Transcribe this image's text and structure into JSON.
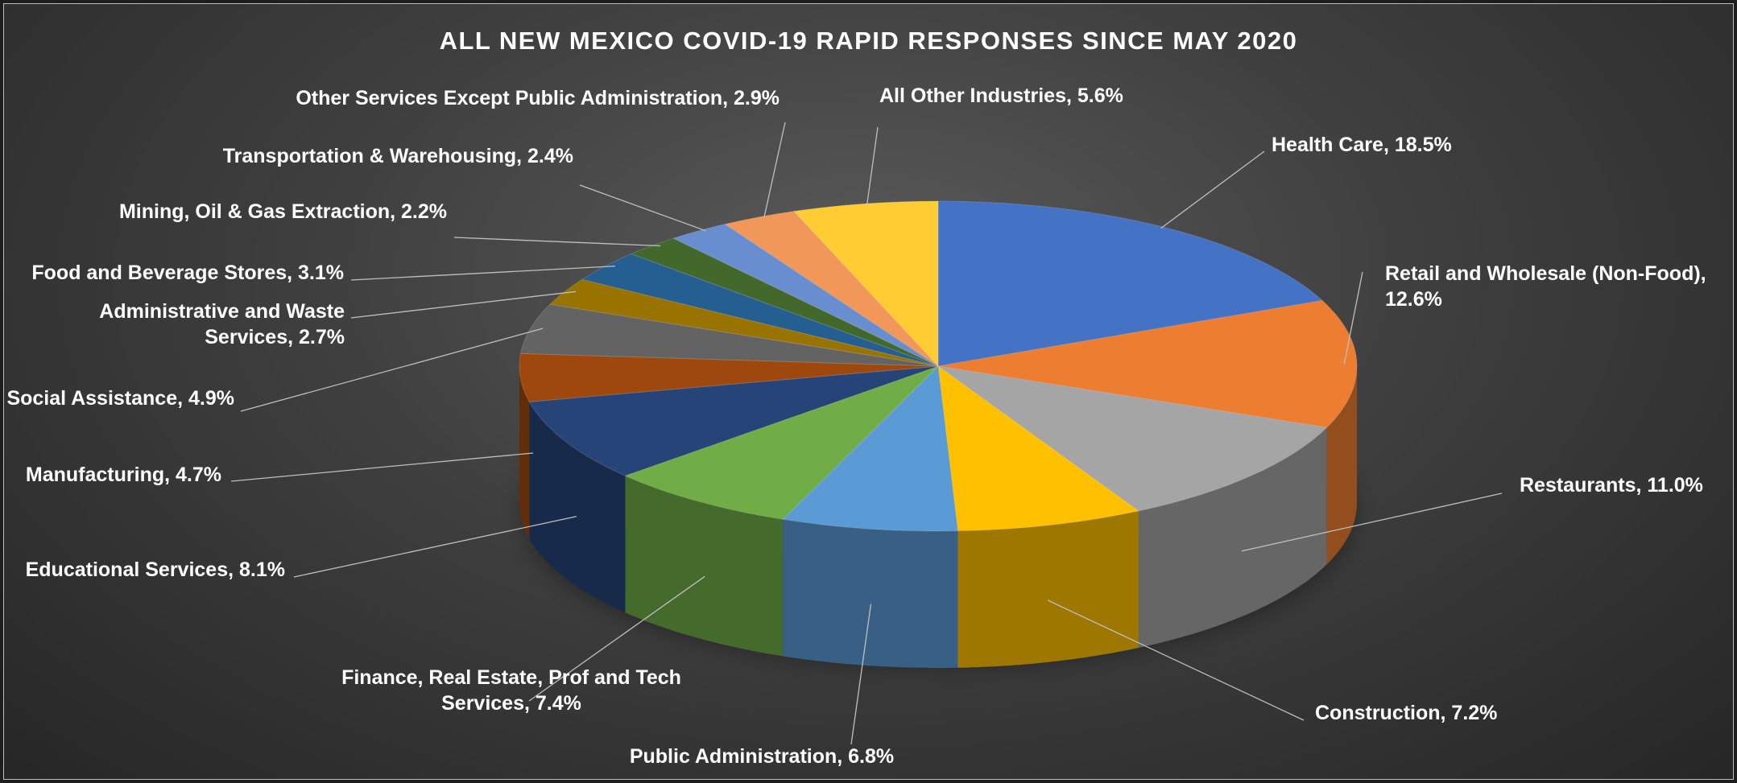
{
  "chart_data": {
    "type": "pie",
    "title": "ALL NEW MEXICO COVID-19 RAPID RESPONSES SINCE MAY 2020",
    "slices": [
      {
        "name": "Health Care",
        "value": 18.5,
        "color": "#4472C4",
        "label_lines": [
          "Health Care, 18.5%"
        ]
      },
      {
        "name": "Retail and Wholesale (Non-Food)",
        "value": 12.6,
        "color": "#ED7D31",
        "label_lines": [
          "Retail and Wholesale (Non-Food),",
          "12.6%"
        ]
      },
      {
        "name": "Restaurants",
        "value": 11.0,
        "color": "#A5A5A5",
        "label_lines": [
          "Restaurants, 11.0%"
        ]
      },
      {
        "name": "Construction",
        "value": 7.2,
        "color": "#FFC000",
        "label_lines": [
          "Construction, 7.2%"
        ]
      },
      {
        "name": "Public Administration",
        "value": 6.8,
        "color": "#5B9BD5",
        "label_lines": [
          "Public Administration, 6.8%"
        ]
      },
      {
        "name": "Finance, Real Estate, Prof and Tech Services",
        "value": 7.4,
        "color": "#70AD47",
        "label_lines": [
          "Finance, Real Estate, Prof and Tech",
          "Services, 7.4%"
        ]
      },
      {
        "name": "Educational Services",
        "value": 8.1,
        "color": "#264478",
        "label_lines": [
          "Educational Services, 8.1%"
        ]
      },
      {
        "name": "Manufacturing",
        "value": 4.7,
        "color": "#9E480E",
        "label_lines": [
          "Manufacturing, 4.7%"
        ]
      },
      {
        "name": "Social Assistance",
        "value": 4.9,
        "color": "#636363",
        "label_lines": [
          "Social Assistance, 4.9%"
        ]
      },
      {
        "name": "Administrative and Waste Services",
        "value": 2.7,
        "color": "#997300",
        "label_lines": [
          "Administrative and Waste",
          "Services, 2.7%"
        ]
      },
      {
        "name": "Food and Beverage Stores",
        "value": 3.1,
        "color": "#255E91",
        "label_lines": [
          "Food and Beverage Stores, 3.1%"
        ]
      },
      {
        "name": "Mining, Oil & Gas Extraction",
        "value": 2.2,
        "color": "#43682B",
        "label_lines": [
          "Mining, Oil & Gas Extraction, 2.2%"
        ]
      },
      {
        "name": "Transportation & Warehousing",
        "value": 2.4,
        "color": "#698ED0",
        "label_lines": [
          "Transportation & Warehousing, 2.4%"
        ]
      },
      {
        "name": "Other Services Except Public Administration",
        "value": 2.9,
        "color": "#F1975A",
        "label_lines": [
          "Other Services Except Public Administration, 2.9%"
        ]
      },
      {
        "name": "All Other Industries",
        "value": 5.6,
        "color": "#FFCD33",
        "label_lines": [
          "All Other Industries, 5.6%"
        ]
      }
    ],
    "start": "12 o'clock",
    "direction": "clockwise",
    "legend": "none",
    "data_labels": "outside with leader lines",
    "style": "3D pie"
  }
}
